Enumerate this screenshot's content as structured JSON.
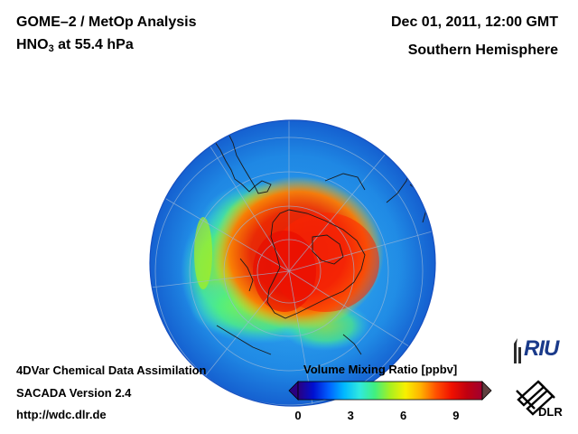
{
  "header": {
    "title_line1": "GOME–2 / MetOp Analysis",
    "title_line2_prefix": "HNO",
    "title_line2_sub": "3",
    "title_line2_suffix": " at 55.4 hPa",
    "datetime": "Dec 01, 2011, 12:00 GMT",
    "hemisphere": "Southern Hemisphere"
  },
  "footer": {
    "line1": "4DVar Chemical Data Assimilation",
    "line2": "SACADA Version 2.4",
    "line3": "http://wdc.dlr.de"
  },
  "colorbar": {
    "title": "Volume Mixing Ratio [ppbv]",
    "min": 0,
    "max": 10.5,
    "ticks": [
      "0",
      "3",
      "6",
      "9"
    ],
    "tick_values": [
      0,
      3,
      6,
      9
    ],
    "colors": [
      "#2a0080",
      "#0010d0",
      "#0060ff",
      "#00b8ff",
      "#30e8e0",
      "#40f080",
      "#a8f020",
      "#f8f000",
      "#ffb000",
      "#ff5000",
      "#f01000",
      "#c00010",
      "#a00030"
    ]
  },
  "logos": {
    "riu_text": "RIU",
    "dlr_text": "DLR"
  },
  "map": {
    "projection": "orthographic-south-polar",
    "field": "HNO3",
    "ocean_background_color": "#1a8ee8"
  }
}
